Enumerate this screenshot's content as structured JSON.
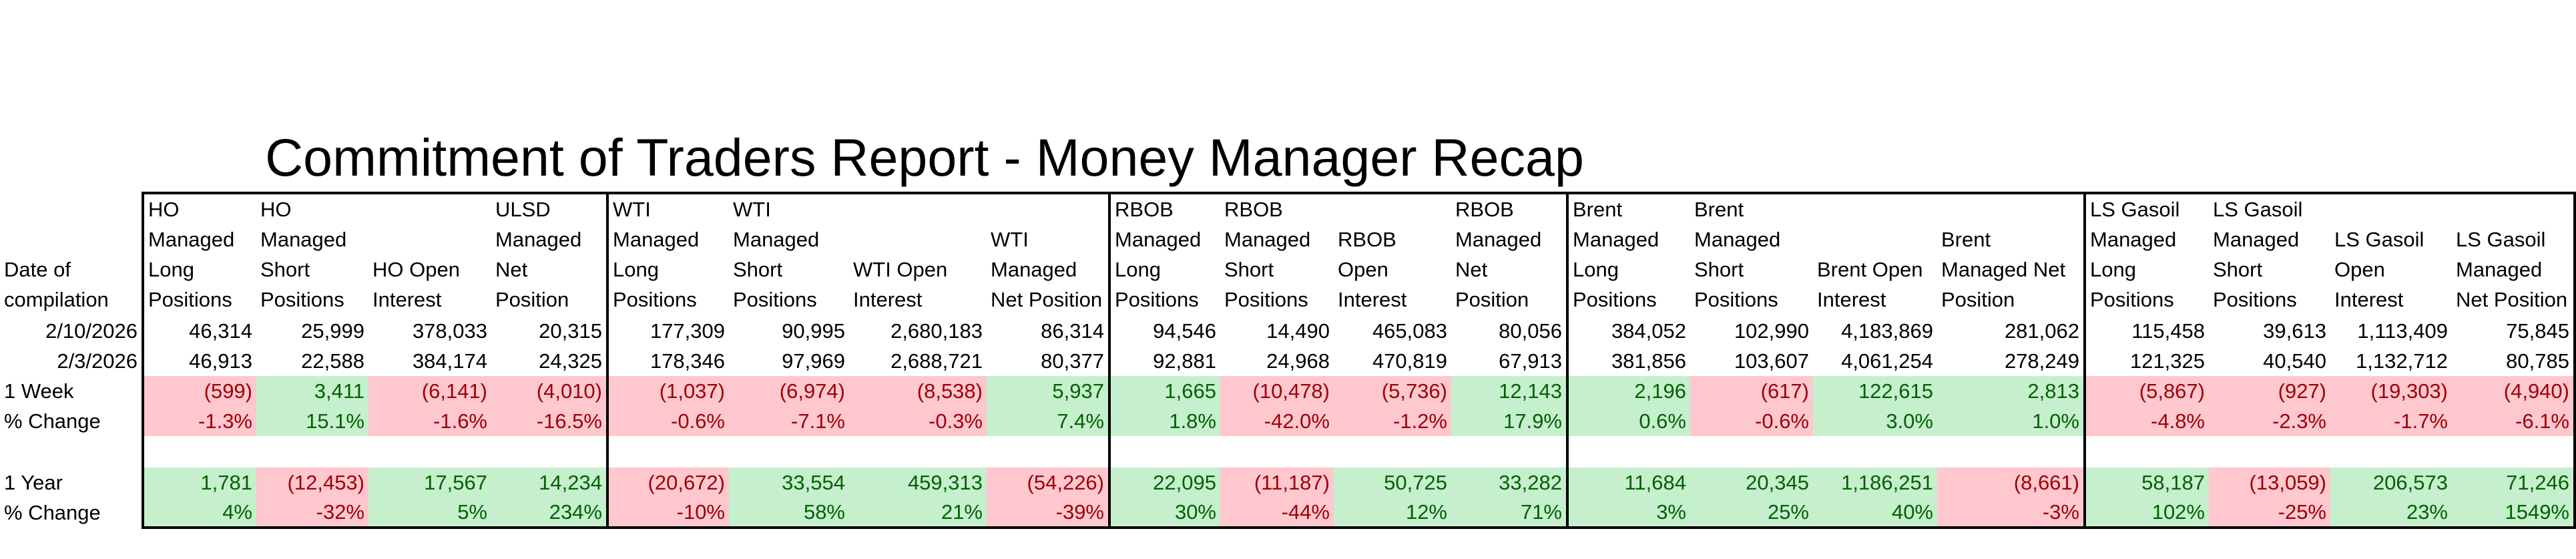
{
  "title": "Commitment of Traders Report - Money Manager Recap",
  "row_label_header": "Date of compilation",
  "groups": [
    {
      "columns": [
        "HO Managed Long Positions",
        "HO Managed Short Positions",
        "HO Open Interest",
        "ULSD Managed Net Position"
      ],
      "rows": [
        [
          "46,314",
          "25,999",
          "378,033",
          "20,315"
        ],
        [
          "46,913",
          "22,588",
          "384,174",
          "24,325"
        ],
        [
          "(599)",
          "3,411",
          "(6,141)",
          "(4,010)"
        ],
        [
          "-1.3%",
          "15.1%",
          "-1.6%",
          "-16.5%"
        ],
        [
          "",
          "",
          "",
          ""
        ],
        [
          "1,781",
          "(12,453)",
          "17,567",
          "14,234"
        ],
        [
          "4%",
          "-32%",
          "5%",
          "234%"
        ]
      ]
    },
    {
      "columns": [
        "WTI Managed Long Positions",
        "WTI Managed Short Positions",
        "WTI Open Interest",
        "WTI Managed Net Position"
      ],
      "rows": [
        [
          "177,309",
          "90,995",
          "2,680,183",
          "86,314"
        ],
        [
          "178,346",
          "97,969",
          "2,688,721",
          "80,377"
        ],
        [
          "(1,037)",
          "(6,974)",
          "(8,538)",
          "5,937"
        ],
        [
          "-0.6%",
          "-7.1%",
          "-0.3%",
          "7.4%"
        ],
        [
          "",
          "",
          "",
          ""
        ],
        [
          "(20,672)",
          "33,554",
          "459,313",
          "(54,226)"
        ],
        [
          "-10%",
          "58%",
          "21%",
          "-39%"
        ]
      ]
    },
    {
      "columns": [
        "RBOB Managed Long Positions",
        "RBOB Managed Short Positions",
        "RBOB Open Interest",
        "RBOB Managed Net Position"
      ],
      "rows": [
        [
          "94,546",
          "14,490",
          "465,083",
          "80,056"
        ],
        [
          "92,881",
          "24,968",
          "470,819",
          "67,913"
        ],
        [
          "1,665",
          "(10,478)",
          "(5,736)",
          "12,143"
        ],
        [
          "1.8%",
          "-42.0%",
          "-1.2%",
          "17.9%"
        ],
        [
          "",
          "",
          "",
          ""
        ],
        [
          "22,095",
          "(11,187)",
          "50,725",
          "33,282"
        ],
        [
          "30%",
          "-44%",
          "12%",
          "71%"
        ]
      ]
    },
    {
      "columns": [
        "Brent Managed Long Positions",
        "Brent Managed Short Positions",
        "Brent Open Interest",
        "Brent Managed Net Position"
      ],
      "rows": [
        [
          "384,052",
          "102,990",
          "4,183,869",
          "281,062"
        ],
        [
          "381,856",
          "103,607",
          "4,061,254",
          "278,249"
        ],
        [
          "2,196",
          "(617)",
          "122,615",
          "2,813"
        ],
        [
          "0.6%",
          "-0.6%",
          "3.0%",
          "1.0%"
        ],
        [
          "",
          "",
          "",
          ""
        ],
        [
          "11,684",
          "20,345",
          "1,186,251",
          "(8,661)"
        ],
        [
          "3%",
          "25%",
          "40%",
          "-3%"
        ]
      ]
    },
    {
      "columns": [
        "LS Gasoil Managed Long Positions",
        "LS Gasoil Managed Short Positions",
        "LS Gasoil Open Interest",
        "LS Gasoil Managed Net Position"
      ],
      "rows": [
        [
          "115,458",
          "39,613",
          "1,113,409",
          "75,845"
        ],
        [
          "121,325",
          "40,540",
          "1,132,712",
          "80,785"
        ],
        [
          "(5,867)",
          "(927)",
          "(19,303)",
          "(4,940)"
        ],
        [
          "-4.8%",
          "-2.3%",
          "-1.7%",
          "-6.1%"
        ],
        [
          "",
          "",
          "",
          ""
        ],
        [
          "58,187",
          "(13,059)",
          "206,573",
          "71,246"
        ],
        [
          "102%",
          "-25%",
          "23%",
          "1549%"
        ]
      ]
    }
  ],
  "row_labels": [
    "2/10/2026",
    "2/3/2026",
    "1 Week",
    "% Change",
    "",
    "1 Year",
    "% Change"
  ],
  "colors": {
    "positive_fill": "#c6efce",
    "positive_text": "#006100",
    "negative_fill": "#ffc7ce",
    "negative_text": "#9c0006",
    "border": "#000000"
  }
}
